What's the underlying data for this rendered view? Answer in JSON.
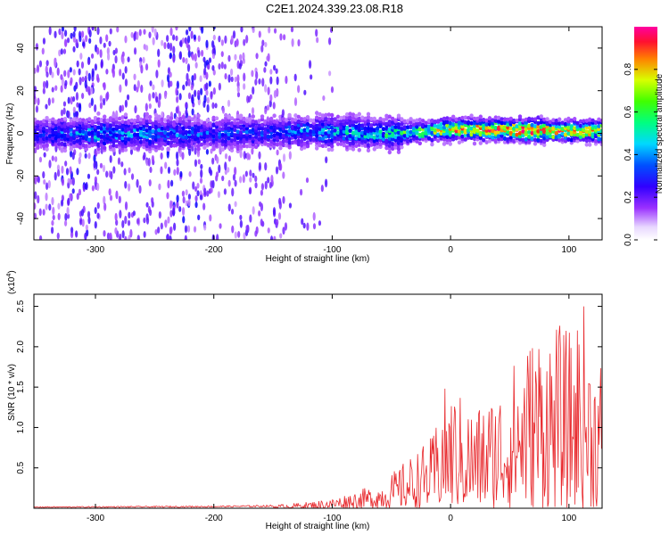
{
  "title": "C2E1.2024.339.23.08.R18",
  "chart_data": [
    {
      "type": "heatmap",
      "xlabel": "Height of straight line (km)",
      "ylabel": "Frequency (Hz)",
      "xlim": [
        -352,
        128
      ],
      "ylim": [
        -50,
        50
      ],
      "xticks": [
        -300,
        -200,
        -100,
        0,
        100
      ],
      "yticks": [
        -40,
        -20,
        0,
        20,
        40
      ],
      "colorbar": {
        "label": "Normalized spectral amplitude",
        "range": [
          0.0,
          1.0
        ],
        "ticks": [
          0.0,
          0.2,
          0.4,
          0.6,
          0.8
        ],
        "colors": [
          "#f0e4ff",
          "#a040ff",
          "#5010ff",
          "#0000ff",
          "#00c8ff",
          "#00ff60",
          "#aaff00",
          "#ffd000",
          "#ff4000",
          "#ff0080"
        ]
      },
      "band": {
        "center_freq_hz": [
          {
            "x": -352,
            "y": 0
          },
          {
            "x": -200,
            "y": 0
          },
          {
            "x": -100,
            "y": 1
          },
          {
            "x": -50,
            "y": 0
          },
          {
            "x": 0,
            "y": 2
          },
          {
            "x": 128,
            "y": 1
          }
        ],
        "peak_amplitude": [
          {
            "x": -352,
            "y": 0.3
          },
          {
            "x": -300,
            "y": 0.45
          },
          {
            "x": -200,
            "y": 0.35
          },
          {
            "x": -150,
            "y": 0.35
          },
          {
            "x": -100,
            "y": 0.45
          },
          {
            "x": -60,
            "y": 0.5
          },
          {
            "x": -30,
            "y": 0.55
          },
          {
            "x": 0,
            "y": 0.8
          },
          {
            "x": 60,
            "y": 0.9
          },
          {
            "x": 128,
            "y": 0.75
          }
        ]
      }
    },
    {
      "type": "line",
      "xlabel": "Height of straight line (km)",
      "ylabel": "SNR (10 * v/v)",
      "yscale_label": "(x10",
      "yscale_exp": "4",
      "xlim": [
        -352,
        128
      ],
      "ylim": [
        0,
        2.65
      ],
      "xticks": [
        -300,
        -200,
        -100,
        0,
        100
      ],
      "yticks": [
        0.5,
        1.0,
        1.5,
        2.0,
        2.5
      ],
      "color": "#e8282c",
      "envelope": [
        {
          "x": -352,
          "y": 0.02
        },
        {
          "x": -200,
          "y": 0.03
        },
        {
          "x": -150,
          "y": 0.04
        },
        {
          "x": -120,
          "y": 0.08
        },
        {
          "x": -100,
          "y": 0.12
        },
        {
          "x": -80,
          "y": 0.22
        },
        {
          "x": -60,
          "y": 0.3
        },
        {
          "x": -45,
          "y": 0.5
        },
        {
          "x": -30,
          "y": 0.7
        },
        {
          "x": -15,
          "y": 0.9
        },
        {
          "x": -5,
          "y": 1.5
        },
        {
          "x": 5,
          "y": 1.45
        },
        {
          "x": 20,
          "y": 1.25
        },
        {
          "x": 40,
          "y": 1.5
        },
        {
          "x": 60,
          "y": 2.0
        },
        {
          "x": 75,
          "y": 2.3
        },
        {
          "x": 90,
          "y": 2.3
        },
        {
          "x": 100,
          "y": 2.2
        },
        {
          "x": 112,
          "y": 2.6
        },
        {
          "x": 120,
          "y": 1.9
        },
        {
          "x": 128,
          "y": 2.0
        }
      ]
    }
  ]
}
